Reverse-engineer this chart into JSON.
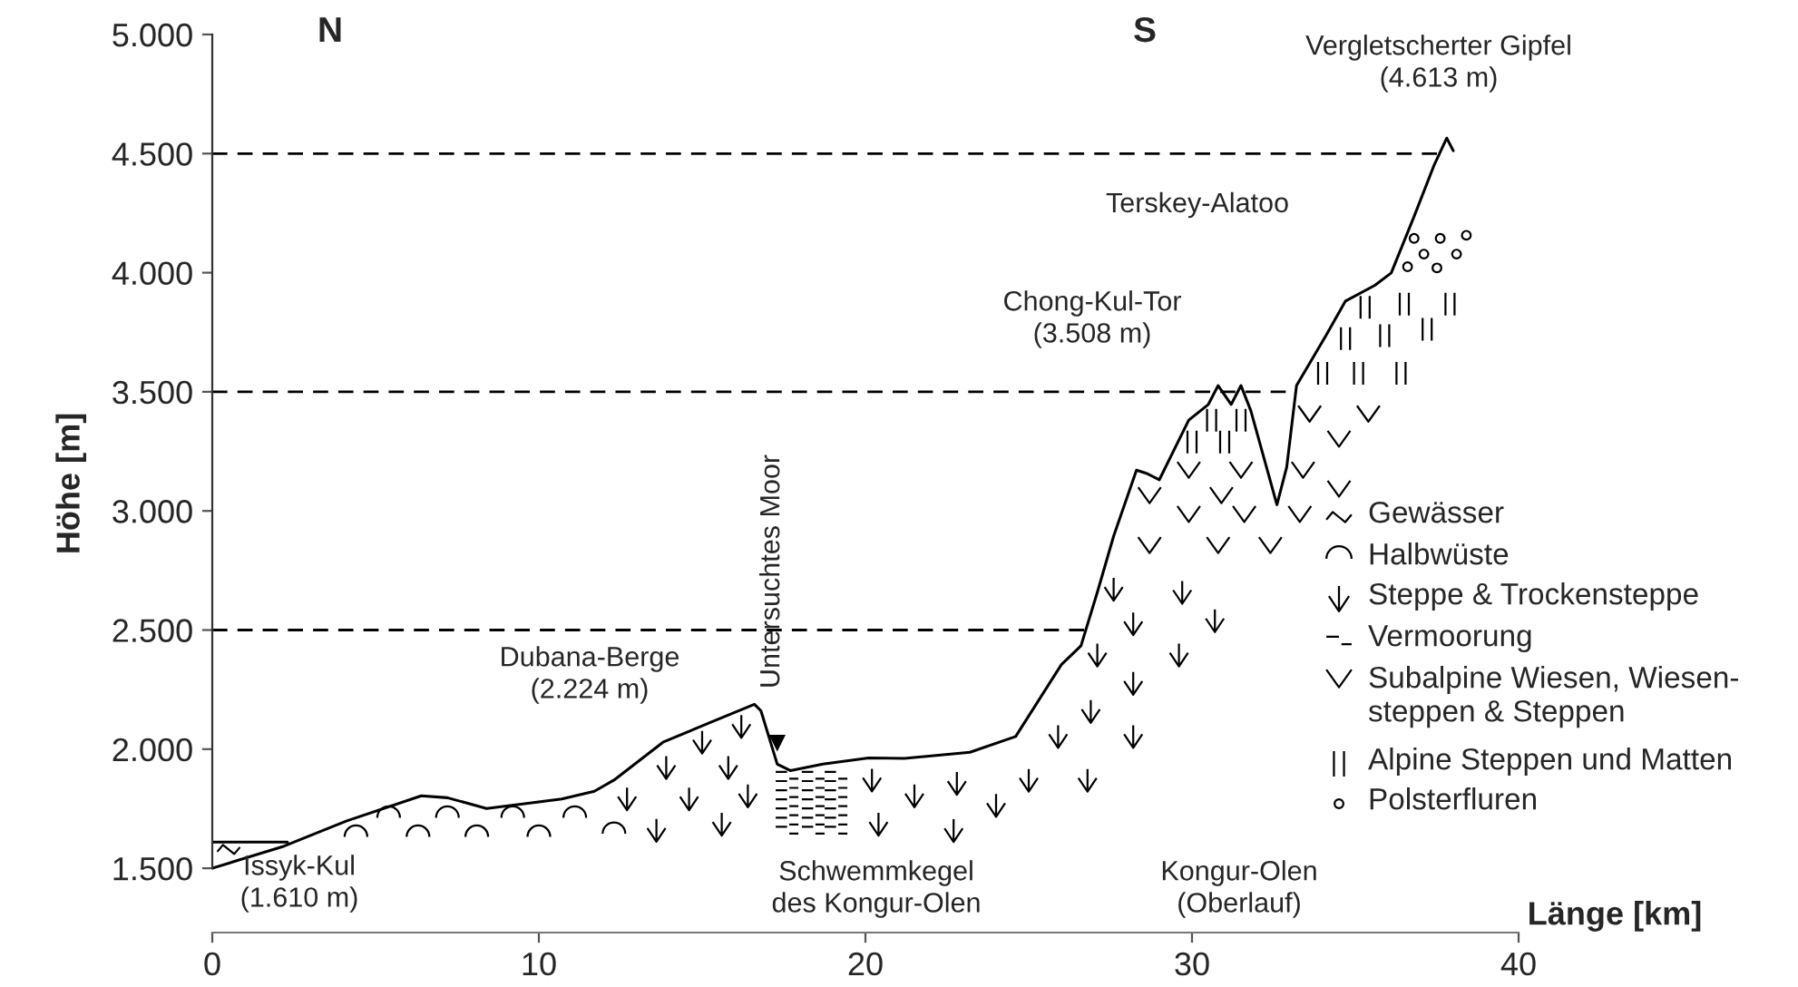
{
  "chart_data": {
    "type": "line",
    "xlabel": "Länge [km]",
    "ylabel": "Höhe [m]",
    "xlim": [
      0,
      40
    ],
    "xticks": [
      0,
      10,
      20,
      30,
      40
    ],
    "ylim": [
      1230,
      5000
    ],
    "yticks": [
      {
        "value": 1500,
        "label": "1.500"
      },
      {
        "value": 2000,
        "label": "2.000"
      },
      {
        "value": 2500,
        "label": "2.500"
      },
      {
        "value": 3000,
        "label": "3.000"
      },
      {
        "value": 3500,
        "label": "3.500"
      },
      {
        "value": 4000,
        "label": "4.000"
      },
      {
        "value": 4500,
        "label": "4.500"
      },
      {
        "value": 5000,
        "label": "5.000"
      }
    ],
    "series": [
      {
        "color": "#000000",
        "x": [
          0,
          2.2,
          4.1,
          6.4,
          7.2,
          8.4,
          9.5,
          10.7,
          11.7,
          12.3,
          13.8,
          15.2,
          16.6,
          16.8,
          17.3,
          17.7,
          18.7,
          20.1,
          21.2,
          23.2,
          24.6,
          26.0,
          26.6,
          27.1,
          27.6,
          28.3,
          28.6,
          29.0,
          29.9,
          30.5,
          30.8,
          31.2,
          31.5,
          31.8,
          32.6,
          32.9,
          33.2,
          34.1,
          34.7,
          35.6,
          36.1,
          36.8,
          37.4,
          37.8,
          38.0
        ],
        "values": [
          1500,
          1593,
          1698,
          1804,
          1796,
          1751,
          1770,
          1791,
          1823,
          1870,
          2029,
          2109,
          2188,
          2161,
          1937,
          1910,
          1937,
          1963,
          1961,
          1987,
          2053,
          2355,
          2434,
          2658,
          2894,
          3171,
          3158,
          3131,
          3381,
          3447,
          3526,
          3447,
          3526,
          3421,
          3026,
          3184,
          3526,
          3736,
          3881,
          3947,
          3999,
          4236,
          4447,
          4565,
          4512
        ]
      },
      {
        "color": "#000000",
        "x": [
          0,
          2.3
        ],
        "values": [
          1610,
          1610
        ]
      }
    ],
    "ref_lines": [
      {
        "axis": "y",
        "value": 2500,
        "color": "#000000",
        "line_style": "dashed"
      },
      {
        "axis": "y",
        "value": 3500,
        "color": "#000000",
        "line_style": "dashed"
      },
      {
        "axis": "y",
        "value": 4500,
        "color": "#000000",
        "line_style": "dashed"
      }
    ],
    "annotations": [
      {
        "text": "Untersuchtes Moor",
        "x": 17.3,
        "y": 1937
      },
      "Issyk-Kul\n(1.610 m)",
      "Dubana-Berge\n(2.224 m)",
      "Chong-Kul-Tor\n(3.508 m)",
      "Vergletscherter Gipfel\n(4.613 m)",
      "N",
      "S",
      "Terskey-Alatoo",
      "Schwemmkegel\ndes Kongur-Olen",
      "Kongur-Olen\n(Oberlauf)",
      "Gewässer",
      "Halbwüste",
      "Steppe & Trockensteppe",
      "Vermoorung",
      "Subalpine Wiesen, Wiesen-\nsteppen & Steppen",
      "Alpine Steppen und Matten",
      "Polsterfluren"
    ]
  }
}
